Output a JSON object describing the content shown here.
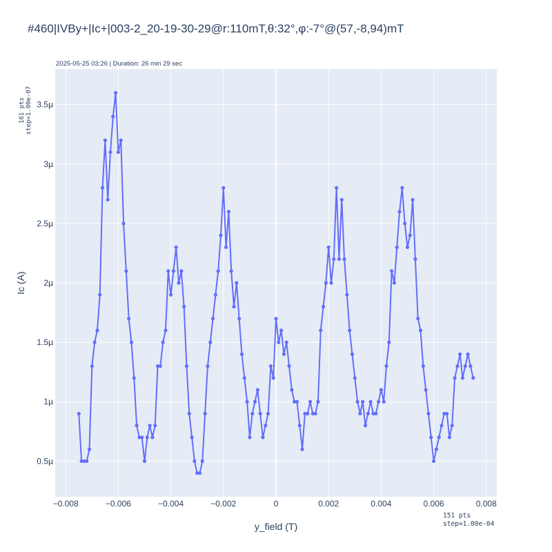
{
  "title": "#460|IVBy+|Ic+|003-2_20-19-30-29@r:110mT,θ:32°,φ:-7°@(57,-8,94)mT",
  "subtitle": "2025-05-25 03:26 | Duration: 26 min 29 sec",
  "y_note": {
    "pts": "161 pts",
    "step": "step=1.00e-07"
  },
  "x_note": {
    "pts": "151 pts",
    "step": "step=1.00e-04"
  },
  "colors": {
    "line": "#636efa",
    "plot_bg": "#e5ecf6",
    "grid": "#ffffff",
    "text": "#2a3f5f"
  },
  "chart_data": {
    "type": "line",
    "xlabel": "y_field (T)",
    "ylabel": "Ic (A)",
    "xlim": [
      -0.0084,
      0.0084
    ],
    "ylim": [
      2e-07,
      3.8e-06
    ],
    "x_ticks": [
      -0.008,
      -0.006,
      -0.004,
      -0.002,
      0,
      0.002,
      0.004,
      0.006,
      0.008
    ],
    "x_tick_labels": [
      "−0.008",
      "−0.006",
      "−0.004",
      "−0.002",
      "0",
      "0.002",
      "0.004",
      "0.006",
      "0.008"
    ],
    "y_ticks": [
      5e-07,
      1e-06,
      1.5e-06,
      2e-06,
      2.5e-06,
      3e-06,
      3.5e-06
    ],
    "y_tick_labels": [
      "0.5µ",
      "1µ",
      "1.5µ",
      "2µ",
      "2.5µ",
      "3µ",
      "3.5µ"
    ],
    "grid": true,
    "legend": false,
    "series": [
      {
        "x_start": -0.0075,
        "x_step": 0.0001,
        "values": [
          9e-07,
          5e-07,
          5e-07,
          5e-07,
          6e-07,
          1.3e-06,
          1.5e-06,
          1.6e-06,
          1.9e-06,
          2.8e-06,
          3.2e-06,
          2.7e-06,
          3.1e-06,
          3.4e-06,
          3.6e-06,
          3.1e-06,
          3.2e-06,
          2.5e-06,
          2.1e-06,
          1.7e-06,
          1.5e-06,
          1.2e-06,
          8e-07,
          7e-07,
          7e-07,
          5e-07,
          7e-07,
          8e-07,
          7e-07,
          8e-07,
          1.3e-06,
          1.3e-06,
          1.5e-06,
          1.6e-06,
          2.1e-06,
          1.9e-06,
          2.1e-06,
          2.3e-06,
          2e-06,
          2.1e-06,
          1.8e-06,
          1.3e-06,
          9e-07,
          7e-07,
          5e-07,
          4e-07,
          4e-07,
          5e-07,
          9e-07,
          1.3e-06,
          1.5e-06,
          1.7e-06,
          1.9e-06,
          2.1e-06,
          2.4e-06,
          2.8e-06,
          2.3e-06,
          2.6e-06,
          2.1e-06,
          1.8e-06,
          2e-06,
          1.7e-06,
          1.4e-06,
          1.2e-06,
          1e-06,
          7e-07,
          9e-07,
          1e-06,
          1.1e-06,
          9e-07,
          7e-07,
          8e-07,
          9e-07,
          1.3e-06,
          1.2e-06,
          1.7e-06,
          1.5e-06,
          1.6e-06,
          1.4e-06,
          1.5e-06,
          1.3e-06,
          1.1e-06,
          1e-06,
          1e-06,
          8e-07,
          6e-07,
          9e-07,
          9e-07,
          1e-06,
          9e-07,
          9e-07,
          1e-06,
          1.6e-06,
          1.8e-06,
          2e-06,
          2.3e-06,
          2e-06,
          2.2e-06,
          2.8e-06,
          2.2e-06,
          2.7e-06,
          2.2e-06,
          1.9e-06,
          1.6e-06,
          1.4e-06,
          1.2e-06,
          1e-06,
          9e-07,
          1e-06,
          8e-07,
          9e-07,
          1e-06,
          9e-07,
          9e-07,
          1e-06,
          1.1e-06,
          1e-06,
          1.3e-06,
          1.5e-06,
          2.1e-06,
          2e-06,
          2.3e-06,
          2.6e-06,
          2.8e-06,
          2.5e-06,
          2.3e-06,
          2.4e-06,
          2.7e-06,
          2.2e-06,
          1.7e-06,
          1.6e-06,
          1.3e-06,
          1.1e-06,
          9e-07,
          7e-07,
          5e-07,
          6e-07,
          7e-07,
          8e-07,
          9e-07,
          9e-07,
          7e-07,
          8e-07,
          1.2e-06,
          1.3e-06,
          1.4e-06,
          1.2e-06,
          1.3e-06,
          1.4e-06,
          1.3e-06,
          1.2e-06
        ]
      }
    ]
  }
}
